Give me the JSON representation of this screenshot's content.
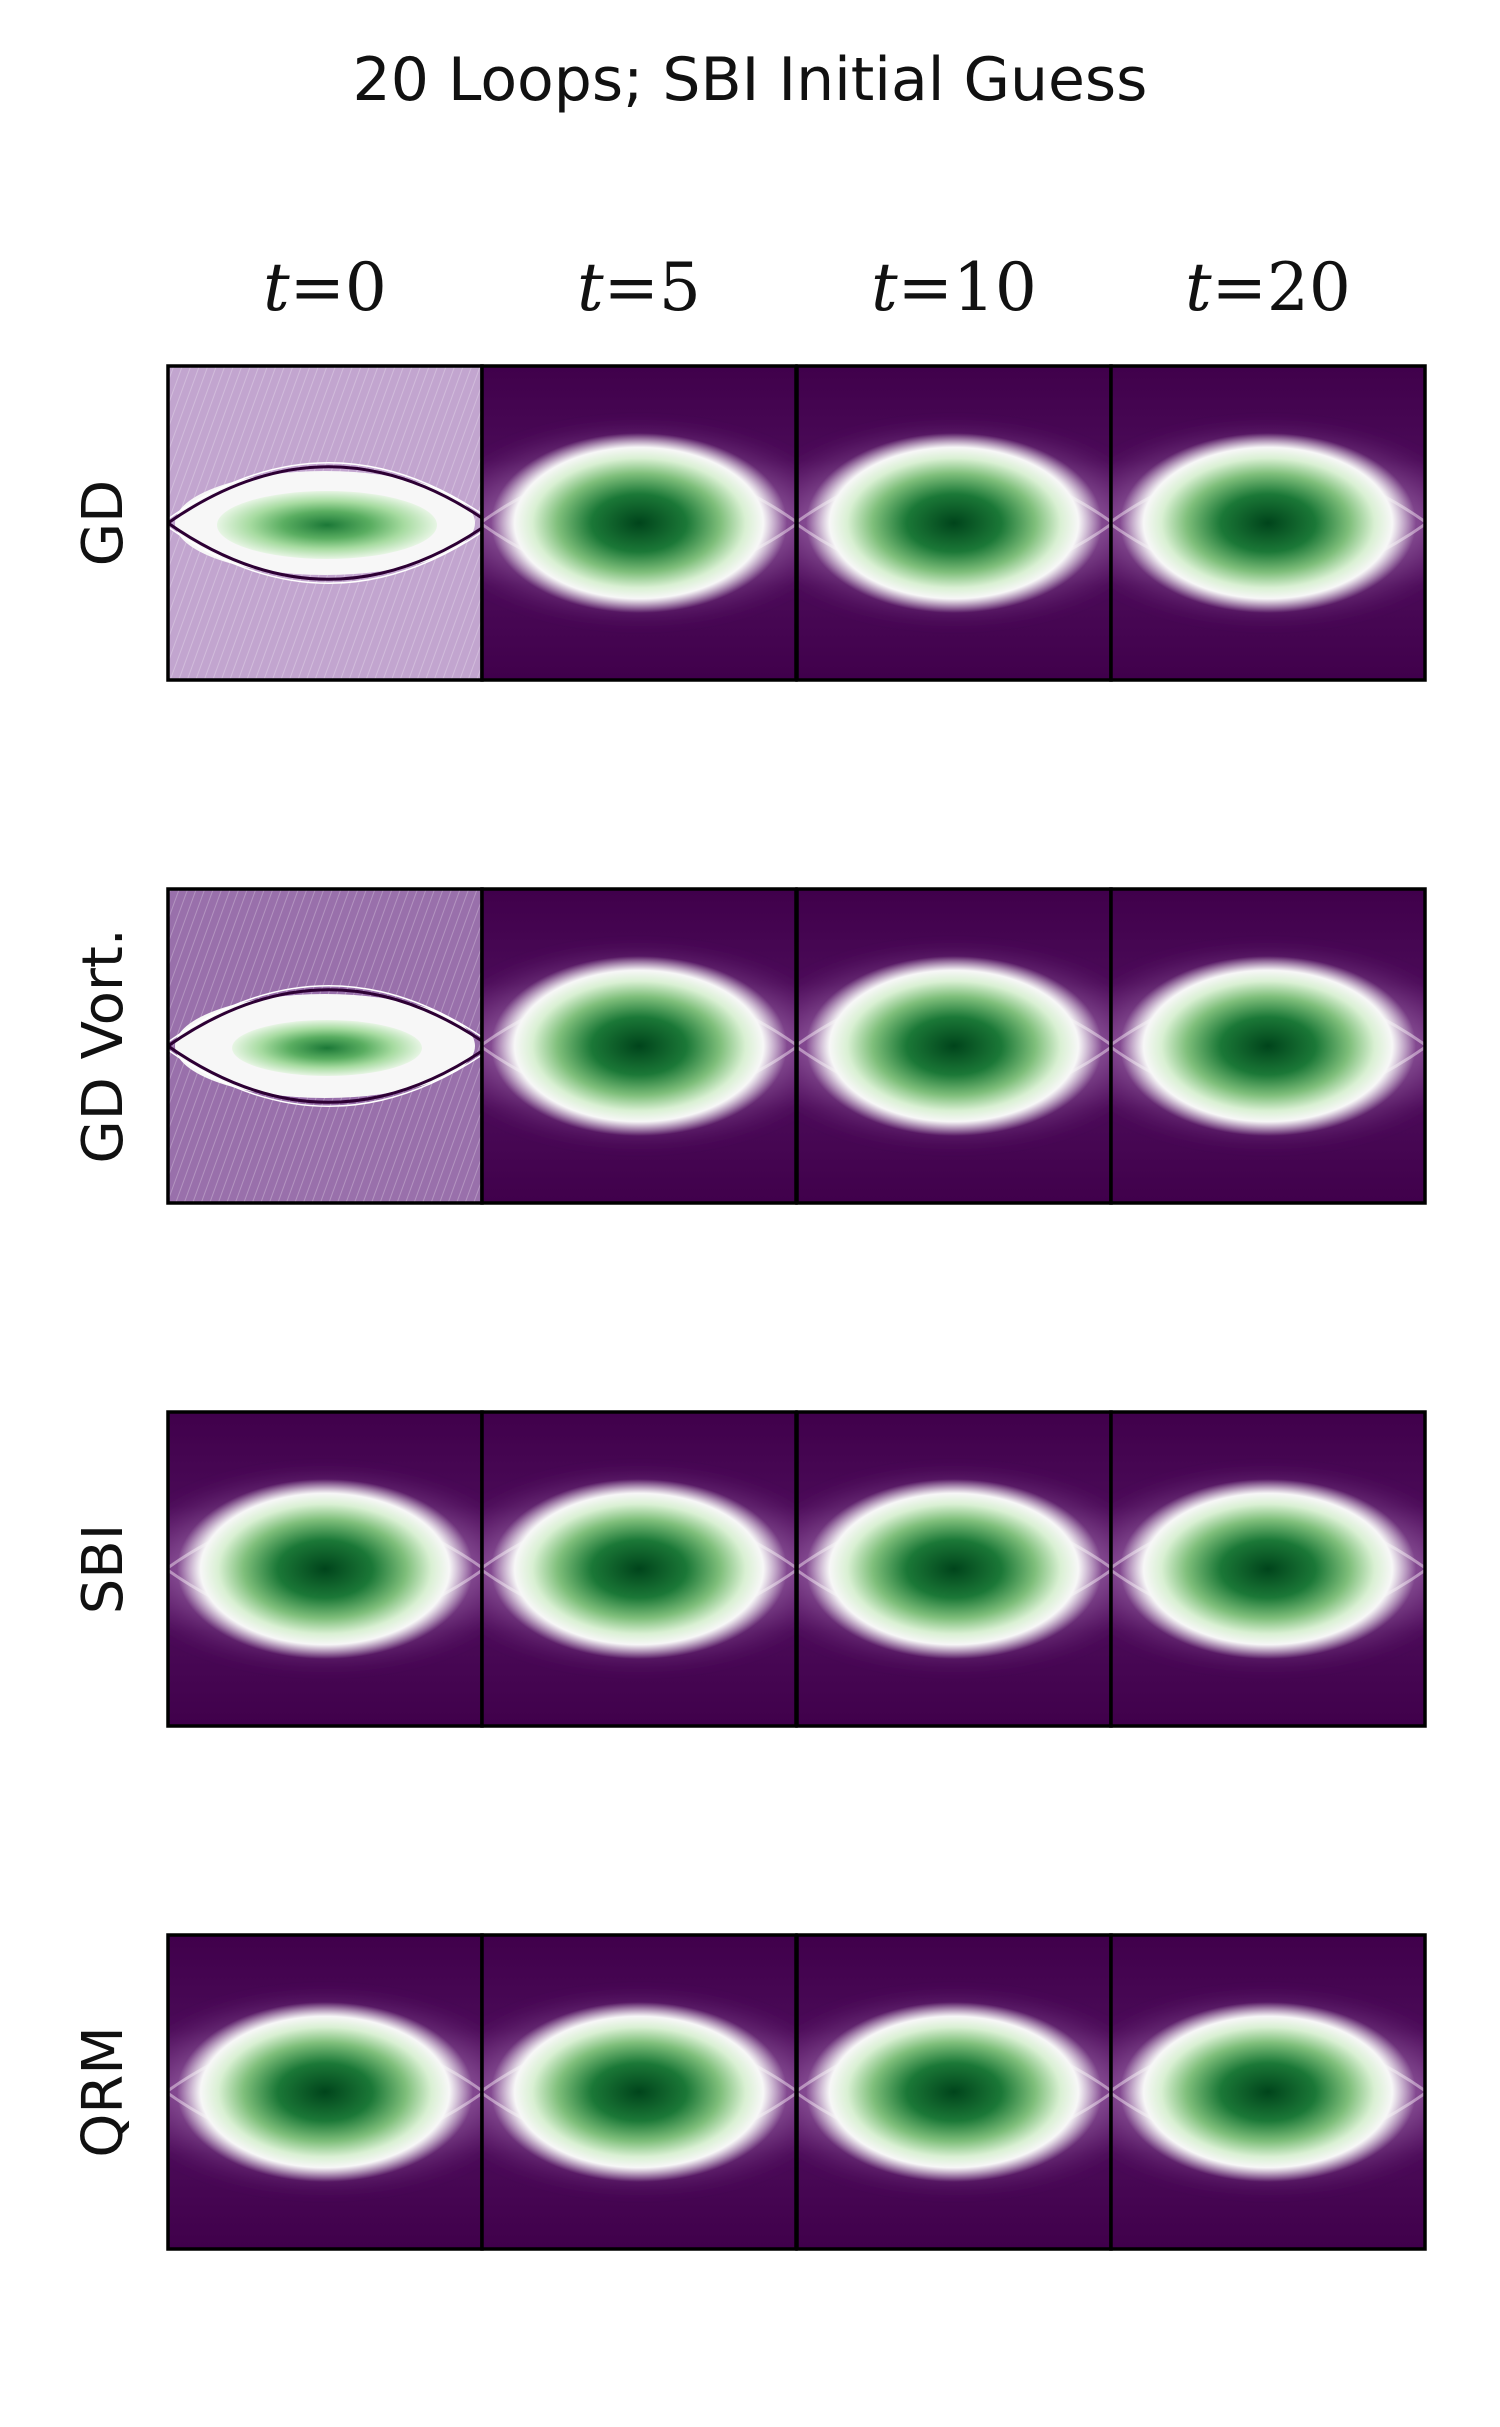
{
  "chart_data": {
    "type": "heatmap",
    "title": "20 Loops; SBI Initial Guess",
    "columns": [
      {
        "t": 0,
        "var": "t",
        "eq": "=",
        "num": "0"
      },
      {
        "t": 5,
        "var": "t",
        "eq": "=",
        "num": "5"
      },
      {
        "t": 10,
        "var": "t",
        "eq": "=",
        "num": "10"
      },
      {
        "t": 20,
        "var": "t",
        "eq": "=",
        "num": "20"
      }
    ],
    "rows": [
      {
        "label": "GD",
        "t0_state": "noisy"
      },
      {
        "label": "GD Vort.",
        "t0_state": "noisy"
      },
      {
        "label": "SBI",
        "t0_state": "smooth"
      },
      {
        "label": "QRM",
        "t0_state": "smooth"
      }
    ],
    "colormap": {
      "low": "#40004b",
      "mid": "#f7f7f7",
      "high": "#00441b"
    },
    "axes_ticks": "off"
  }
}
